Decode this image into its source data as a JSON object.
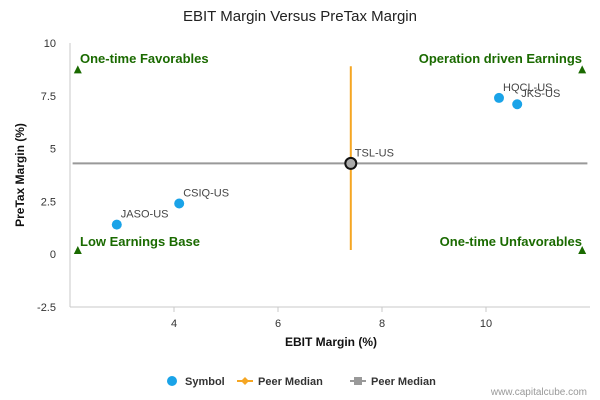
{
  "chart_data": {
    "type": "scatter",
    "title": "EBIT Margin Versus PreTax Margin",
    "xlabel": "EBIT Margin (%)",
    "ylabel": "PreTax Margin (%)",
    "xlim": [
      2.0,
      12.0
    ],
    "ylim": [
      -2.5,
      10
    ],
    "xticks": [
      {
        "value": 4,
        "label": "4"
      },
      {
        "value": 6,
        "label": "6"
      },
      {
        "value": 8,
        "label": "8"
      },
      {
        "value": 10,
        "label": "10"
      }
    ],
    "yticks": [
      {
        "value": 10,
        "label": "10"
      },
      {
        "value": 7.5,
        "label": "7.5"
      },
      {
        "value": 5,
        "label": "5"
      },
      {
        "value": 2.5,
        "label": "2.5"
      },
      {
        "value": 0,
        "label": "0"
      },
      {
        "value": -2.5,
        "label": "-2.5"
      }
    ],
    "series": [
      {
        "name": "Symbol",
        "color": "#1aa3e8",
        "points": [
          {
            "label": "HQCL-US",
            "x": 10.25,
            "y": 7.4
          },
          {
            "label": "JKS-US",
            "x": 10.6,
            "y": 7.1
          },
          {
            "label": "CSIQ-US",
            "x": 4.1,
            "y": 2.4
          },
          {
            "label": "JASO-US",
            "x": 2.9,
            "y": 1.4
          }
        ]
      }
    ],
    "highlight": {
      "label": "TSL-US",
      "x": 7.4,
      "y": 4.3
    },
    "peer_median_x": {
      "name": "Peer Median",
      "value": 7.4,
      "y_range": [
        0.2,
        8.9
      ],
      "color": "#f5a623"
    },
    "peer_median_y": {
      "name": "Peer Median",
      "value": 4.3,
      "color": "#999999"
    },
    "quadrants": [
      {
        "label": "One-time Favorables",
        "position": "top-left"
      },
      {
        "label": "Operation driven Earnings",
        "position": "top-right"
      },
      {
        "label": "Low Earnings Base",
        "position": "bottom-left"
      },
      {
        "label": "One-time Unfavorables",
        "position": "bottom-right"
      }
    ],
    "legend": [
      {
        "label": "Symbol",
        "kind": "dot",
        "color": "#1aa3e8"
      },
      {
        "label": "Peer Median",
        "kind": "line-diamond",
        "color": "#f5a623"
      },
      {
        "label": "Peer Median",
        "kind": "line-square",
        "color": "#999999"
      }
    ],
    "credit": "www.capitalcube.com"
  }
}
